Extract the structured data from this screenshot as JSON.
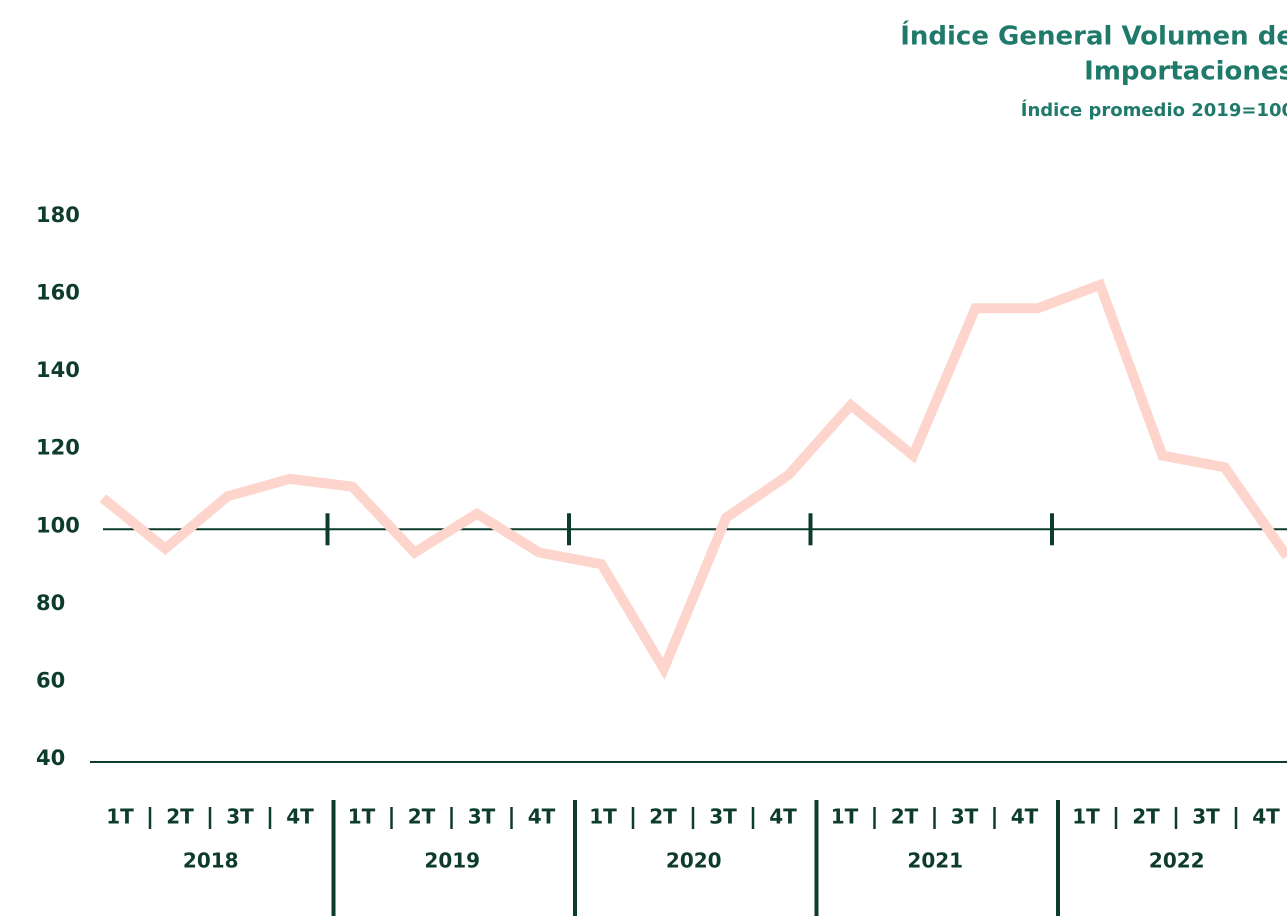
{
  "chart_data": {
    "type": "line",
    "title": [
      "Índice General Volumen de",
      "Importaciones"
    ],
    "subtitle": "Índice promedio 2019=100",
    "categories": [
      "1T",
      "2T",
      "3T",
      "4T",
      "1T",
      "2T",
      "3T",
      "4T",
      "1T",
      "2T",
      "3T",
      "4T",
      "1T",
      "2T",
      "3T",
      "4T",
      "1T",
      "2T",
      "3T",
      "4T"
    ],
    "years": [
      "2018",
      "2019",
      "2020",
      "2021",
      "2022"
    ],
    "series": [
      {
        "color": "#fdd5cc",
        "values": [
          108,
          95,
          108.5,
          113,
          111,
          94,
          104,
          94,
          91,
          64,
          103,
          114,
          132,
          119,
          157,
          157,
          163,
          119,
          116,
          93
        ]
      }
    ],
    "ylim": [
      40,
      180
    ],
    "yticks": [
      40,
      60,
      80,
      100,
      120,
      140,
      160,
      180
    ],
    "reference_line": 100
  }
}
